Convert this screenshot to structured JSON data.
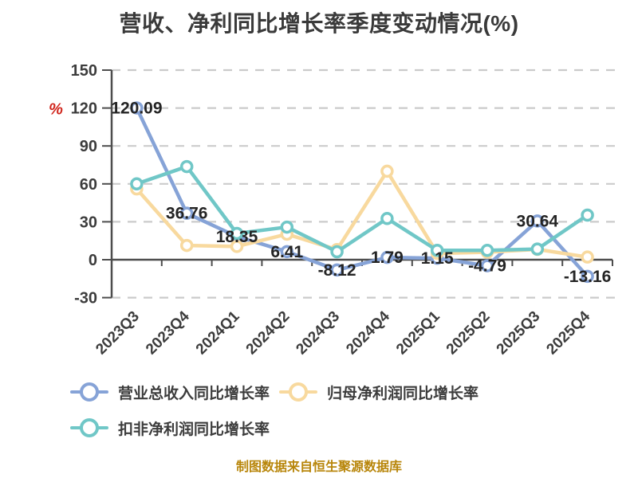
{
  "page": {
    "title": "营收、净利同比增长率季度变动情况(%)",
    "caption": "制图数据来自恒生聚源数据库"
  },
  "colors": {
    "title": "#3A3A3A",
    "axis": "#4D4D4D",
    "grid": "#CBCBCB",
    "tick_label": "#3C3C3C",
    "data_label": "#242424",
    "caption": "#B8860B",
    "y_unit": "#D0241B",
    "legend_label": "#3C3C3C"
  },
  "chart_data": {
    "type": "line",
    "title": "营收、净利同比增长率季度变动情况(%)",
    "xlabel": "",
    "ylabel": "",
    "y_unit": "%",
    "ylim": [
      -30,
      150
    ],
    "y_ticks": [
      150,
      120,
      90,
      60,
      30,
      0,
      -30
    ],
    "grid": "dashed horizontal",
    "legend_position": "bottom-left",
    "categories": [
      "2023Q3",
      "2023Q4",
      "2024Q1",
      "2024Q2",
      "2024Q3",
      "2024Q4",
      "2025Q1",
      "2025Q2",
      "2025Q3",
      "2025Q4"
    ],
    "series": [
      {
        "id": "revenue-yoy",
        "name": "营业总收入同比增长率",
        "color": "#86A3D7",
        "labels_visible": true,
        "values": [
          120.09,
          36.76,
          18.35,
          6.41,
          -8.12,
          1.79,
          1.15,
          -4.79,
          30.64,
          -13.16
        ]
      },
      {
        "id": "net-profit-yoy",
        "name": "归母净利润同比增长率",
        "color": "#F8D99E",
        "labels_visible": false,
        "values": [
          56.0,
          11.3,
          10.5,
          20.2,
          8.0,
          70.0,
          5.0,
          6.0,
          8.2,
          2.1
        ]
      },
      {
        "id": "deducted-net-profit-yoy",
        "name": "扣非净利润同比增长率",
        "color": "#70C7C7",
        "labels_visible": false,
        "values": [
          60.0,
          73.7,
          20.8,
          25.8,
          6.3,
          32.6,
          7.4,
          7.4,
          8.4,
          35.3
        ]
      }
    ]
  }
}
